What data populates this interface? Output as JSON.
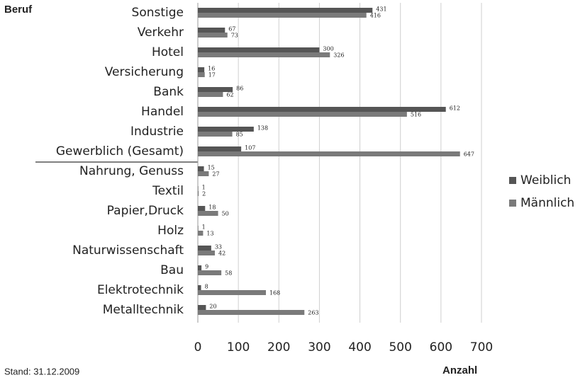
{
  "chart_data": {
    "type": "hbar",
    "y_label": "Beruf",
    "x_label": "Anzahl",
    "note": "Stand: 31.12.2009",
    "categories": [
      "Sonstige",
      "Verkehr",
      "Hotel",
      "Versicherung",
      "Bank",
      "Handel",
      "Industrie",
      "Gewerblich (Gesamt)",
      "Nahrung, Genuss",
      "Textil",
      "Papier,Druck",
      "Holz",
      "Naturwissenschaft",
      "Bau",
      "Elektrotechnik",
      "Metalltechnik"
    ],
    "series": [
      {
        "name": "Weiblich",
        "color": "#555555",
        "values": [
          431,
          67,
          300,
          16,
          86,
          612,
          138,
          107,
          15,
          1,
          18,
          1,
          33,
          9,
          8,
          20
        ]
      },
      {
        "name": "Männlich",
        "color": "#7a7a7a",
        "values": [
          416,
          73,
          326,
          17,
          62,
          516,
          85,
          647,
          27,
          2,
          50,
          13,
          42,
          58,
          168,
          263
        ]
      }
    ],
    "xlim": [
      0,
      700
    ],
    "xticks": [
      0,
      100,
      200,
      300,
      400,
      500,
      600,
      700
    ],
    "grid": true,
    "legend": "right"
  }
}
